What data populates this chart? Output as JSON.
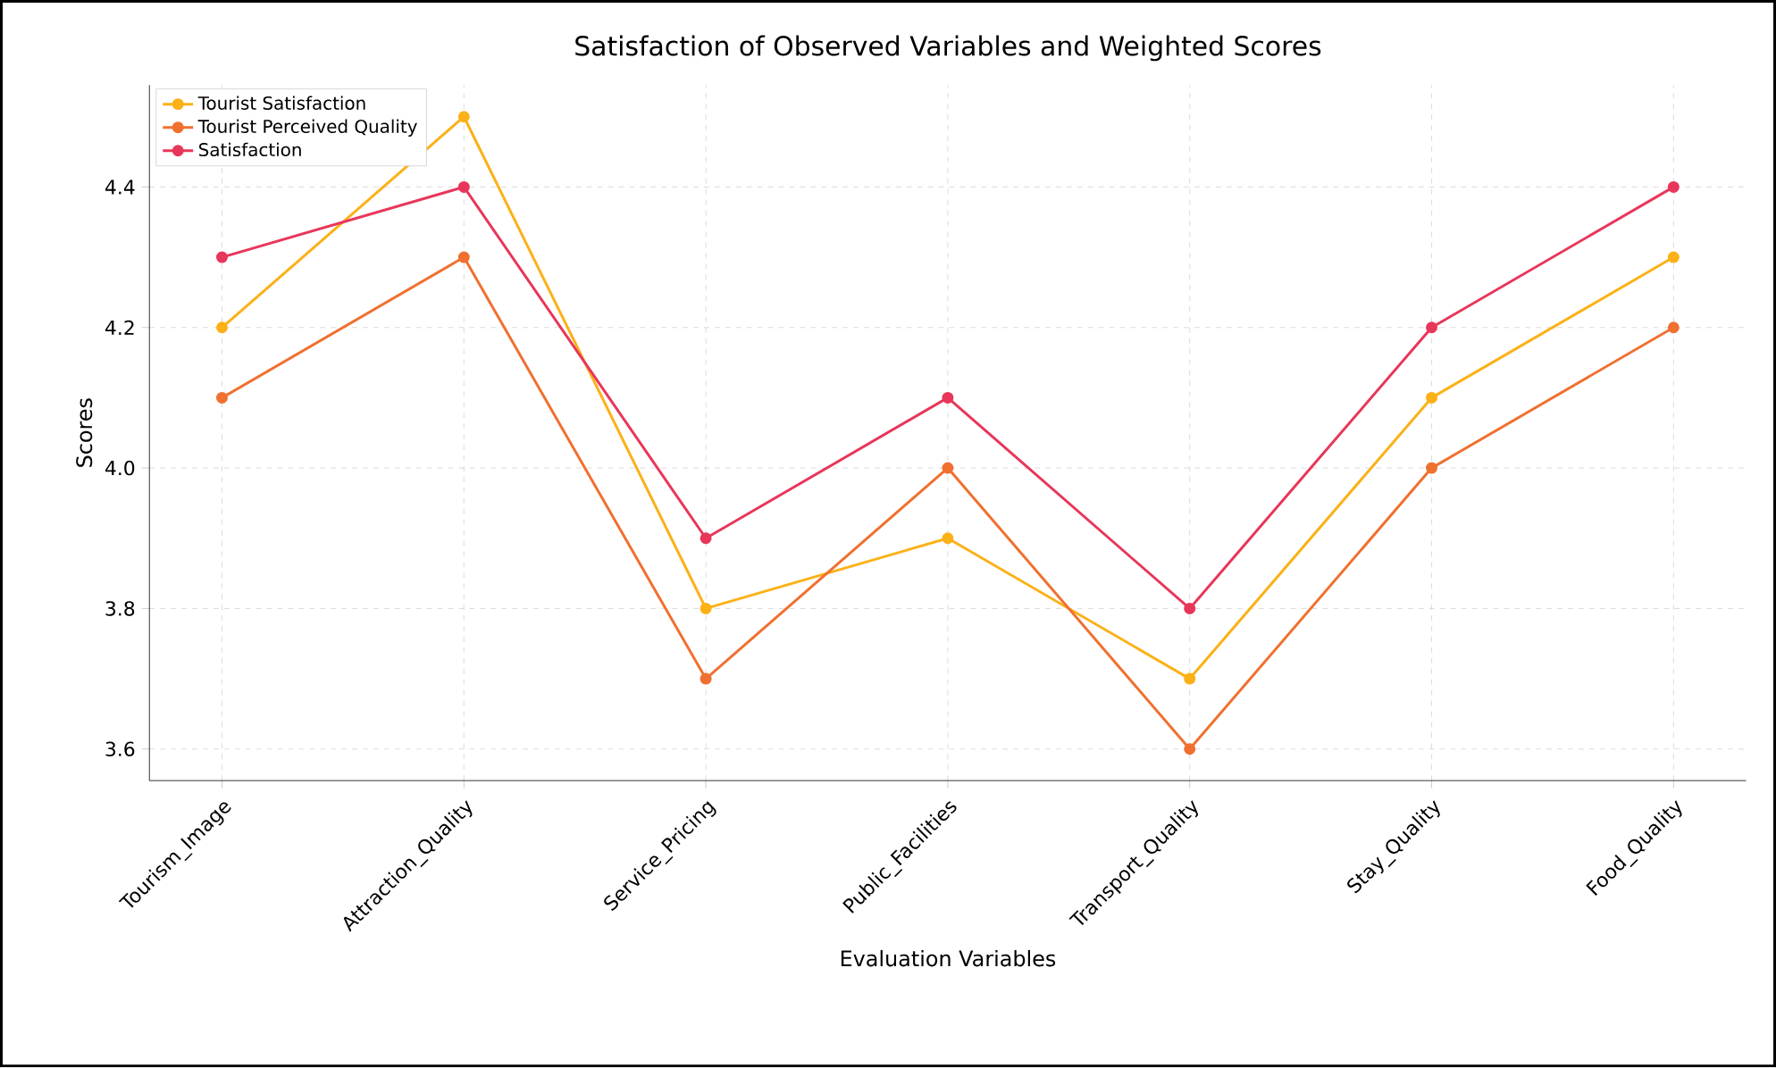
{
  "chart_data": {
    "type": "line",
    "title": "Satisfaction of Observed Variables and Weighted Scores",
    "xlabel": "Evaluation Variables",
    "ylabel": "Scores",
    "categories": [
      "Tourism_Image",
      "Attraction_Quality",
      "Service_Pricing",
      "Public_Facilities",
      "Transport_Quality",
      "Stay_Quality",
      "Food_Quality"
    ],
    "series": [
      {
        "name": "Tourist Satisfaction",
        "color": "#fbb117",
        "values": [
          4.2,
          4.5,
          3.8,
          3.9,
          3.7,
          4.1,
          4.3
        ]
      },
      {
        "name": "Tourist Perceived Quality",
        "color": "#f07030",
        "values": [
          4.1,
          4.3,
          3.7,
          4.0,
          3.6,
          4.0,
          4.2
        ]
      },
      {
        "name": "Satisfaction",
        "color": "#e8365a",
        "values": [
          4.3,
          4.4,
          3.9,
          4.1,
          3.8,
          4.2,
          4.4
        ]
      }
    ],
    "ylim": [
      3.555,
      4.545
    ],
    "yticks": [
      3.6,
      3.8,
      {
        "value": 4.0,
        "label": "4.0"
      },
      4.2,
      4.4
    ],
    "grid": true,
    "legend": "top left",
    "marker": "circle",
    "line_style": "solid"
  }
}
